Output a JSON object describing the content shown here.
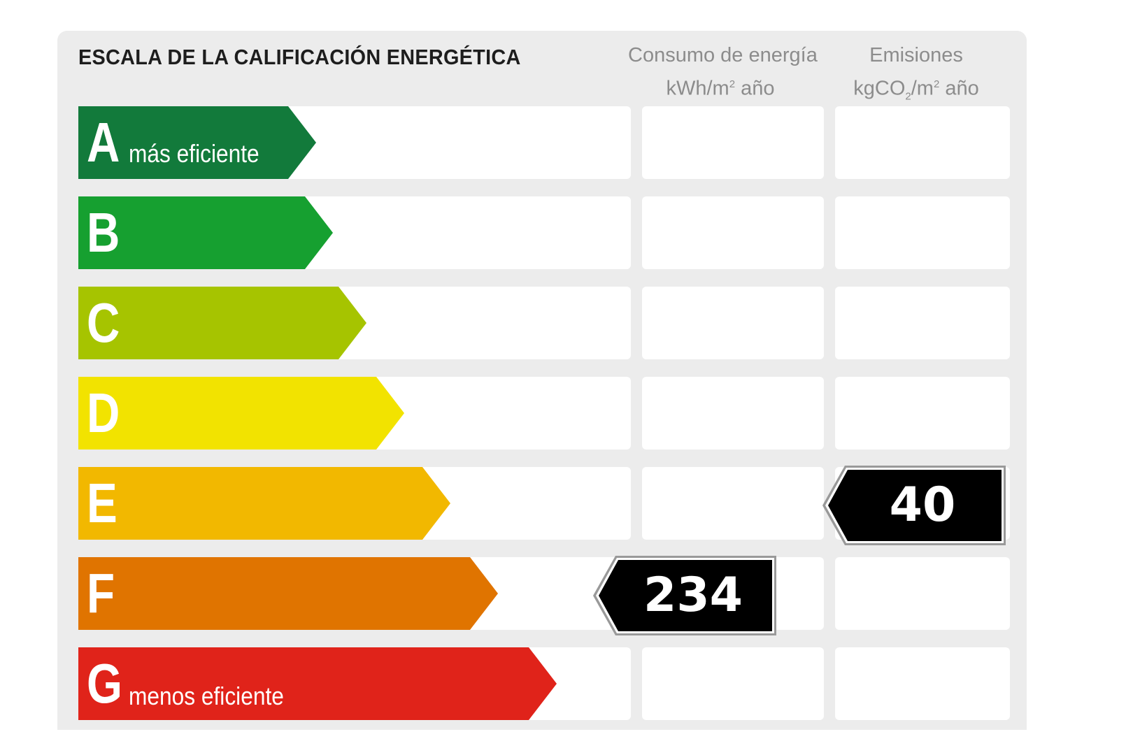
{
  "title": "ESCALA DE LA CALIFICACIÓN ENERGÉTICA",
  "columns": {
    "consumo": {
      "line1": "Consumo de energía",
      "line2_pre": "kWh/m",
      "line2_sup": "2",
      "line2_post": " año"
    },
    "emisiones": {
      "line1": "Emisiones",
      "line2_pre": "kgCO",
      "line2_sub": "2",
      "line2_mid": "/m",
      "line2_sup": "2",
      "line2_post": " año"
    }
  },
  "classes": [
    {
      "letter": "A",
      "label": "más eficiente",
      "color": "#127a3b"
    },
    {
      "letter": "B",
      "label": "",
      "color": "#16a030"
    },
    {
      "letter": "C",
      "label": "",
      "color": "#a6c400"
    },
    {
      "letter": "D",
      "label": "",
      "color": "#f2e300"
    },
    {
      "letter": "E",
      "label": "",
      "color": "#f2b800"
    },
    {
      "letter": "F",
      "label": "",
      "color": "#e07400"
    },
    {
      "letter": "G",
      "label": "menos eficiente",
      "color": "#e0231a"
    }
  ],
  "ratings": {
    "consumo": {
      "value": "234",
      "class": "F"
    },
    "emisiones": {
      "value": "40",
      "class": "E"
    }
  }
}
